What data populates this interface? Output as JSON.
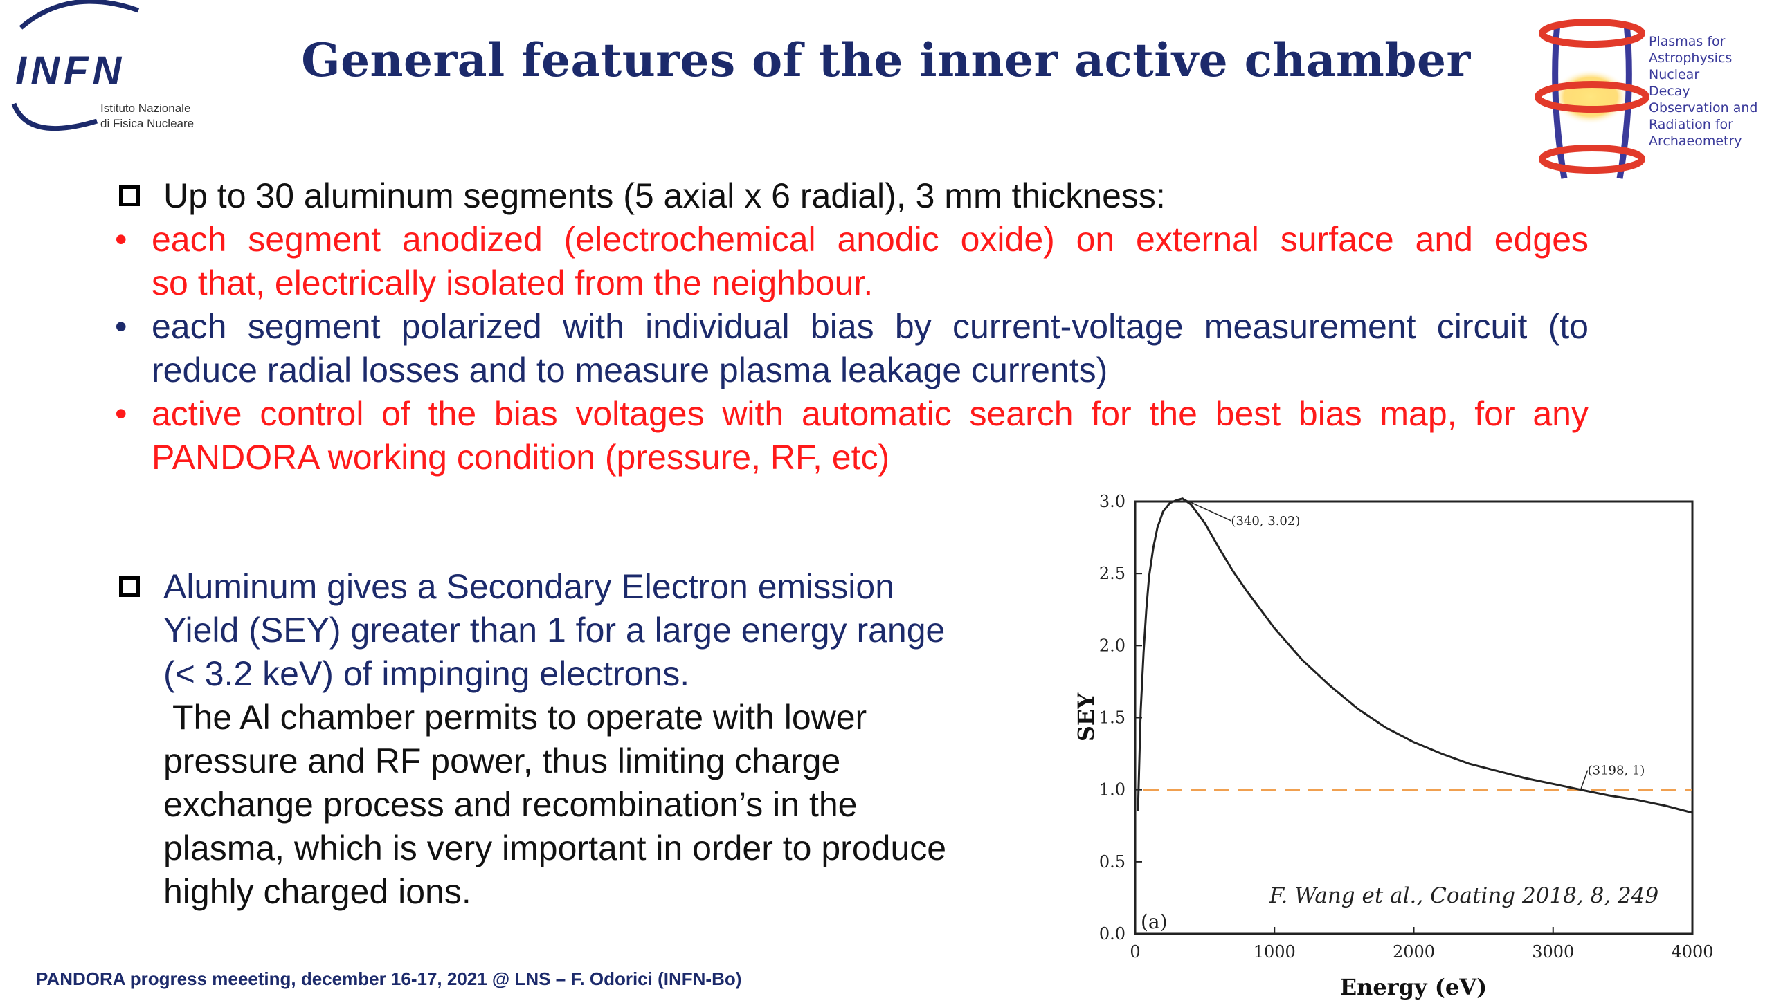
{
  "header": {
    "title": "General features of the inner active chamber",
    "infn_logo_text": "INFN",
    "infn_subtitle_1": "Istituto Nazionale",
    "infn_subtitle_2": "di Fisica Nucleare",
    "pandora_logo_lines": [
      "Plasmas for",
      "Astrophysics",
      "Nuclear",
      "Decay",
      "Observation and",
      "Radiation for",
      "Archaeometry"
    ]
  },
  "section1": {
    "heading": "Up to 30 aluminum segments (5 axial x 6 radial), 3 mm thickness:",
    "bullets": [
      {
        "color": "#ff1a1a",
        "lines": [
          "each segment anodized (electrochemical anodic oxide) on external surface and edges",
          "so that, electrically isolated from the neighbour."
        ]
      },
      {
        "color": "#1c2a6b",
        "lines": [
          "each segment polarized with individual bias by current-voltage measurement circuit (to",
          "reduce radial losses and to measure plasma leakage currents)"
        ]
      },
      {
        "color": "#ff1a1a",
        "lines": [
          "active control of the bias voltages with automatic search for the best bias map, for any",
          "PANDORA working condition (pressure, RF, etc)"
        ]
      }
    ]
  },
  "section2": {
    "lines_navy": [
      "Aluminum gives a Secondary Electron emission",
      "Yield (SEY) greater than 1 for a large energy range",
      "(< 3.2 keV) of impinging electrons."
    ],
    "lines_black": [
      " The Al chamber permits to operate with lower",
      "pressure and RF power, thus limiting charge",
      "exchange process and recombination’s in the",
      "plasma, which is very important in order to produce",
      "highly charged ions."
    ]
  },
  "footer": "PANDORA progress meeeting, december 16-17, 2021 @ LNS – F. Odorici (INFN-Bo)",
  "chart_data": {
    "type": "line",
    "xlabel": "Energy (eV)",
    "ylabel": "SEY",
    "xlim": [
      0,
      4000
    ],
    "ylim": [
      0,
      3.0
    ],
    "xticks": [
      "0",
      "1000",
      "2000",
      "3000",
      "4000"
    ],
    "yticks": [
      "0.0",
      "0.5",
      "1.0",
      "1.5",
      "2.0",
      "2.5",
      "3.0"
    ],
    "panel_label": "(a)",
    "citation": "F. Wang et al., Coating 2018, 8, 249",
    "annotations": [
      {
        "text": "(340, 3.02)",
        "x": 340,
        "y": 3.02
      },
      {
        "text": "(3198, 1)",
        "x": 3198,
        "y": 1.0
      }
    ],
    "reference_line_y": 1.0,
    "series": [
      {
        "x": [
          20,
          40,
          60,
          80,
          100,
          130,
          160,
          200,
          250,
          300,
          340,
          400,
          500,
          600,
          700,
          800,
          1000,
          1200,
          1400,
          1600,
          1800,
          2000,
          2200,
          2400,
          2600,
          2800,
          3000,
          3198,
          3400,
          3600,
          3800,
          4000
        ],
        "y": [
          0.85,
          1.55,
          1.95,
          2.25,
          2.48,
          2.68,
          2.82,
          2.93,
          2.99,
          3.01,
          3.02,
          2.98,
          2.85,
          2.68,
          2.52,
          2.38,
          2.12,
          1.9,
          1.72,
          1.56,
          1.43,
          1.33,
          1.25,
          1.18,
          1.13,
          1.08,
          1.04,
          1.0,
          0.96,
          0.93,
          0.89,
          0.84
        ]
      }
    ]
  }
}
